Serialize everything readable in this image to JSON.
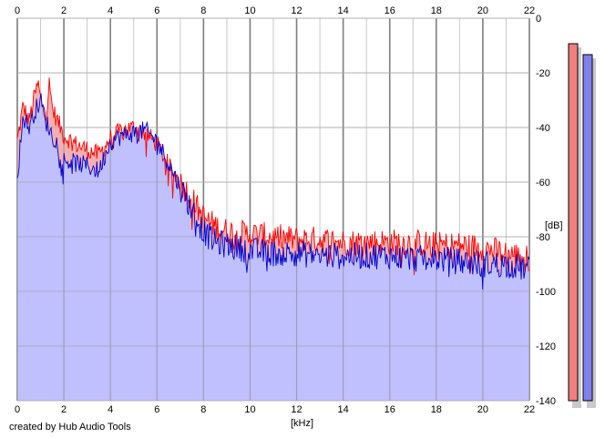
{
  "credit": "created by Hub Audio Tools",
  "colors": {
    "background": "#ffffff",
    "plot_background": "#ffffff",
    "grid_major": "#808080",
    "grid_minor": "#c8c8c8",
    "left_channel": "#ff0000",
    "left_fill": "#f4b0b0",
    "right_channel": "#0000cc",
    "right_fill": "#c0c0ff",
    "meter_left": "#f08080",
    "meter_right": "#8080ee",
    "meter_shadow": "#c8c8c8"
  },
  "meters": {
    "left_peak_db": -7,
    "right_peak_db": -11
  },
  "chart_data": {
    "type": "area",
    "title": "",
    "xlabel": "[kHz]",
    "ylabel": "[dB]",
    "xlim": [
      0,
      22
    ],
    "ylim": [
      -140,
      0
    ],
    "x_ticks": [
      "0",
      "2",
      "4",
      "6",
      "8",
      "10",
      "12",
      "14",
      "16",
      "18",
      "20",
      "22"
    ],
    "y_ticks": [
      "0",
      "-20",
      "-40",
      "-60",
      "-80",
      "-100",
      "-120",
      "-140"
    ],
    "x_axis_position": "top and bottom",
    "y_axis_position": "right",
    "grid": true,
    "series": [
      {
        "color": "#ff0000",
        "fill": "#f4b0b0",
        "x": [
          0,
          0.25,
          0.5,
          0.75,
          0.9,
          1.0,
          1.25,
          1.4,
          1.5,
          1.75,
          2.0,
          2.5,
          3.0,
          3.5,
          4.0,
          4.5,
          5.0,
          5.5,
          6.0,
          6.5,
          7.0,
          7.5,
          8.0,
          8.5,
          9.0,
          10.0,
          11.0,
          12.0,
          13.0,
          14.0,
          15.0,
          16.0,
          17.0,
          18.0,
          19.0,
          20.0,
          21.0,
          22.0
        ],
        "values": [
          -45,
          -32,
          -38,
          -28,
          -24,
          -30,
          -35,
          -22,
          -33,
          -38,
          -43,
          -46,
          -48,
          -50,
          -44,
          -41,
          -40,
          -42,
          -46,
          -54,
          -60,
          -66,
          -73,
          -76,
          -78,
          -79,
          -80,
          -81,
          -81,
          -82,
          -82,
          -82,
          -82,
          -83,
          -83,
          -84,
          -86,
          -88
        ]
      },
      {
        "color": "#0000cc",
        "fill": "#c0c0ff",
        "x": [
          0,
          0.25,
          0.5,
          0.75,
          1.0,
          1.25,
          1.5,
          1.75,
          2.0,
          2.5,
          3.0,
          3.5,
          4.0,
          4.5,
          5.0,
          5.5,
          6.0,
          6.5,
          7.0,
          7.5,
          8.0,
          8.5,
          9.0,
          10.0,
          11.0,
          12.0,
          13.0,
          14.0,
          15.0,
          16.0,
          17.0,
          18.0,
          19.0,
          20.0,
          21.0,
          22.0
        ],
        "values": [
          -58,
          -36,
          -40,
          -34,
          -30,
          -38,
          -43,
          -46,
          -52,
          -53,
          -54,
          -56,
          -45,
          -43,
          -42,
          -41,
          -45,
          -53,
          -62,
          -70,
          -78,
          -82,
          -83,
          -85,
          -86,
          -86,
          -87,
          -87,
          -87,
          -87,
          -88,
          -88,
          -89,
          -90,
          -90,
          -92
        ]
      }
    ]
  }
}
